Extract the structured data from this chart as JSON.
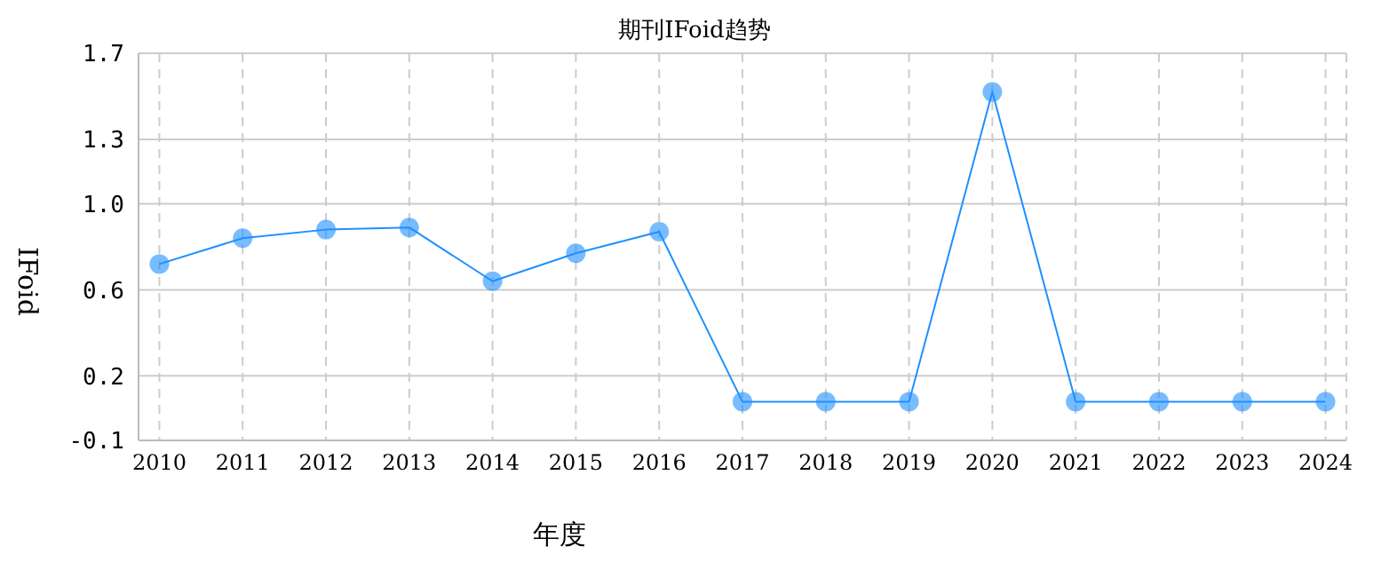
{
  "chart_data": {
    "type": "line",
    "title": "期刊IFoid趋势",
    "xlabel": "年度",
    "ylabel": "IFoid",
    "categories": [
      "2010",
      "2011",
      "2012",
      "2013",
      "2014",
      "2015",
      "2016",
      "2017",
      "2018",
      "2019",
      "2020",
      "2021",
      "2022",
      "2023",
      "2024"
    ],
    "series": [
      {
        "color": "#1e90ff",
        "values": [
          0.72,
          0.84,
          0.88,
          0.89,
          0.64,
          0.77,
          0.87,
          0.08,
          0.08,
          0.08,
          1.52,
          0.08,
          0.08,
          0.08,
          0.08
        ]
      }
    ],
    "ylim": [
      -0.1,
      1.7
    ],
    "yticks": [
      -0.1,
      0.2,
      0.6,
      {
        "value": 1.0,
        "label": "1.0"
      },
      1.3,
      1.7
    ],
    "grid": true,
    "marker": "circle",
    "line_style": "solid",
    "legend": false
  }
}
